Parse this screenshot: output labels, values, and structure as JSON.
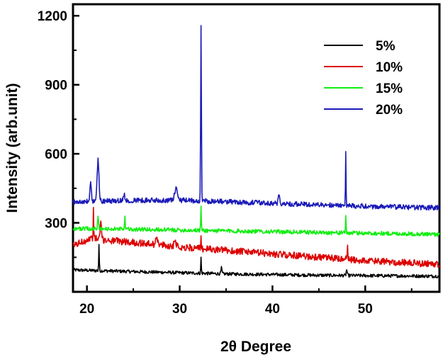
{
  "chart_data": {
    "type": "line",
    "xlabel": "2θ Degree",
    "ylabel": "Intensity (arb.unit)",
    "xlim": [
      18.5,
      58
    ],
    "ylim": [
      0,
      1250
    ],
    "x_ticks": [
      20,
      30,
      40,
      50
    ],
    "y_ticks": [
      300,
      600,
      900,
      1200
    ],
    "grid": false,
    "legend_position": "top-right",
    "series": [
      {
        "name": "5%",
        "color": "#000000",
        "baseline": [
          [
            18.5,
            95
          ],
          [
            25,
            88
          ],
          [
            35,
            78
          ],
          [
            45,
            72
          ],
          [
            58,
            68
          ]
        ],
        "noise": 7,
        "peaks": [
          [
            21.3,
            115,
            0.03
          ],
          [
            32.3,
            70,
            0.03
          ],
          [
            34.5,
            25,
            0.05
          ],
          [
            48,
            25,
            0.05
          ]
        ]
      },
      {
        "name": "10%",
        "color": "#dd0000",
        "baseline": [
          [
            18.5,
            200
          ],
          [
            20.5,
            235
          ],
          [
            22,
            225
          ],
          [
            25,
            215
          ],
          [
            30,
            195
          ],
          [
            35,
            180
          ],
          [
            40,
            165
          ],
          [
            45,
            150
          ],
          [
            50,
            135
          ],
          [
            58,
            120
          ]
        ],
        "noise": 15,
        "peaks": [
          [
            20.7,
            120,
            0.03
          ],
          [
            21.5,
            85,
            0.06
          ],
          [
            27.5,
            40,
            0.1
          ],
          [
            29.5,
            35,
            0.1
          ],
          [
            32.3,
            45,
            0.03
          ],
          [
            48.1,
            70,
            0.03
          ]
        ]
      },
      {
        "name": "15%",
        "color": "#11ee11",
        "baseline": [
          [
            18.5,
            275
          ],
          [
            25,
            272
          ],
          [
            35,
            265
          ],
          [
            45,
            258
          ],
          [
            58,
            250
          ]
        ],
        "noise": 9,
        "peaks": [
          [
            21.2,
            50,
            0.05
          ],
          [
            24.1,
            60,
            0.03
          ],
          [
            32.3,
            110,
            0.03
          ],
          [
            47.9,
            80,
            0.03
          ]
        ]
      },
      {
        "name": "20%",
        "color": "#1a1ab8",
        "baseline": [
          [
            18.5,
            390
          ],
          [
            25,
            398
          ],
          [
            30,
            398
          ],
          [
            35,
            392
          ],
          [
            40,
            385
          ],
          [
            45,
            378
          ],
          [
            50,
            372
          ],
          [
            58,
            365
          ]
        ],
        "noise": 11,
        "peaks": [
          [
            20.4,
            80,
            0.08
          ],
          [
            21.2,
            180,
            0.1
          ],
          [
            24,
            25,
            0.1
          ],
          [
            29.6,
            50,
            0.15
          ],
          [
            32.3,
            760,
            0.04
          ],
          [
            40.7,
            40,
            0.08
          ],
          [
            47.9,
            235,
            0.03
          ]
        ]
      }
    ]
  }
}
